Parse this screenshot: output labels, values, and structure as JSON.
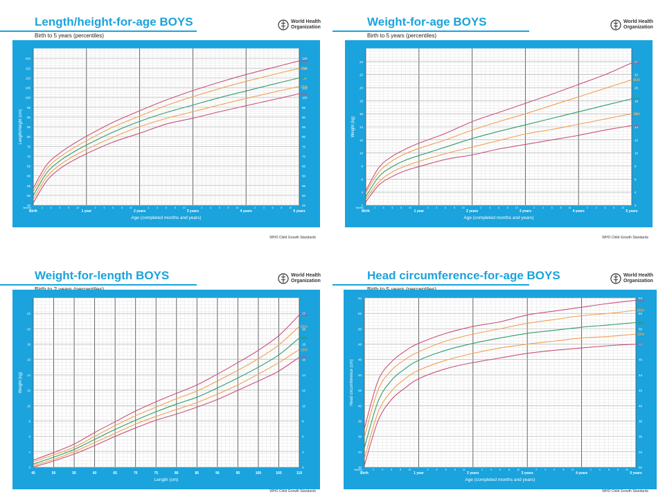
{
  "colors": {
    "header": "#1aa3dc",
    "p97": "#c8507a",
    "p85": "#f0a050",
    "p50": "#2e9b6a",
    "p15": "#f0a050",
    "p3": "#c8507a"
  },
  "brand": {
    "line1": "World Health",
    "line2": "Organization",
    "icon": "who-emblem-icon"
  },
  "footer": "WHO Child Growth Standards",
  "charts": [
    {
      "title": "Length/height-for-age BOYS",
      "subtitle": "Birth to 5 years (percentiles)",
      "chart_data": {
        "type": "line",
        "xlabel": "Age (completed months and years)",
        "ylabel": "Length/Height (cm)",
        "xlim": [
          0,
          60
        ],
        "ylim": [
          45,
          125
        ],
        "x_ticks": [
          0,
          12,
          24,
          36,
          48,
          60
        ],
        "x_tick_labels": [
          "Birth",
          "1 year",
          "2 years",
          "3 years",
          "4 years",
          "5 years"
        ],
        "x_minor_tick_labels": [
          "2",
          "4",
          "6",
          "8",
          "10",
          "2",
          "4",
          "6",
          "8",
          "10",
          "2",
          "4",
          "6",
          "8",
          "10",
          "2",
          "4",
          "6",
          "8",
          "10",
          "2",
          "4",
          "6",
          "8",
          "10"
        ],
        "x_start_label": "Months",
        "y_ticks": [
          45,
          50,
          55,
          60,
          65,
          70,
          75,
          80,
          85,
          90,
          95,
          100,
          105,
          110,
          115,
          120
        ],
        "grid": true,
        "x": [
          0,
          3,
          6,
          9,
          12,
          18,
          24,
          30,
          36,
          42,
          48,
          54,
          60
        ],
        "series": [
          {
            "name": "97th",
            "values": [
              53.7,
              65.5,
              71.6,
              76.2,
              80.2,
              87.3,
              93.2,
              98.7,
              103.5,
              107.8,
              111.7,
              115.2,
              118.7
            ]
          },
          {
            "name": "85th",
            "values": [
              51.9,
              63.5,
              69.6,
              74.1,
              77.9,
              84.9,
              90.5,
              95.9,
              100.4,
              104.5,
              108.2,
              111.6,
              114.9
            ]
          },
          {
            "name": "50th",
            "values": [
              49.9,
              61.4,
              67.6,
              72.0,
              75.7,
              82.3,
              87.8,
              92.3,
              96.1,
              99.9,
              103.3,
              106.7,
              110.0
            ]
          },
          {
            "name": "15th",
            "values": [
              47.9,
              59.3,
              65.6,
              69.9,
              73.5,
              79.7,
              85.1,
              89.3,
              92.7,
              96.2,
              99.5,
              102.6,
              105.6
            ]
          },
          {
            "name": "3rd",
            "values": [
              46.1,
              57.3,
              63.6,
              67.8,
              71.3,
              77.2,
              81.7,
              86.4,
              89.4,
              92.7,
              95.8,
              98.8,
              101.9
            ]
          }
        ]
      }
    },
    {
      "title": "Weight-for-age BOYS",
      "subtitle": "Birth to 5 years (percentiles)",
      "chart_data": {
        "type": "line",
        "xlabel": "Age (completed months and years)",
        "ylabel": "Weight (kg)",
        "xlim": [
          0,
          60
        ],
        "ylim": [
          2,
          26
        ],
        "x_ticks": [
          0,
          12,
          24,
          36,
          48,
          60
        ],
        "x_tick_labels": [
          "Birth",
          "1 year",
          "2 years",
          "3 years",
          "4 years",
          "5 years"
        ],
        "x_minor_tick_labels": [
          "2",
          "4",
          "6",
          "8",
          "10",
          "2",
          "4",
          "6",
          "8",
          "10",
          "2",
          "4",
          "6",
          "8",
          "10",
          "2",
          "4",
          "6",
          "8",
          "10",
          "2",
          "4",
          "6",
          "8",
          "10"
        ],
        "x_start_label": "Months",
        "y_ticks": [
          2,
          4,
          6,
          8,
          10,
          12,
          14,
          16,
          18,
          20,
          22,
          24
        ],
        "grid": true,
        "x": [
          0,
          3,
          6,
          9,
          12,
          18,
          24,
          30,
          36,
          42,
          48,
          54,
          60
        ],
        "series": [
          {
            "name": "97th",
            "values": [
              4.2,
              7.8,
              9.5,
              10.6,
              11.5,
              13.0,
              14.8,
              16.2,
              17.6,
              19.0,
              20.5,
              22.0,
              23.8
            ]
          },
          {
            "name": "85th",
            "values": [
              3.9,
              7.1,
              8.8,
              9.9,
              10.7,
              12.0,
              13.5,
              14.8,
              16.0,
              17.3,
              18.6,
              19.9,
              21.2
            ]
          },
          {
            "name": "50th",
            "values": [
              3.3,
              6.4,
              7.9,
              8.9,
              9.6,
              10.9,
              12.2,
              13.3,
              14.3,
              15.3,
              16.3,
              17.3,
              18.3
            ]
          },
          {
            "name": "15th",
            "values": [
              2.9,
              5.6,
              7.1,
              8.0,
              8.7,
              9.9,
              10.9,
              11.9,
              12.9,
              13.6,
              14.4,
              15.2,
              16.0
            ]
          },
          {
            "name": "3rd",
            "values": [
              2.5,
              5.1,
              6.4,
              7.3,
              7.9,
              9.0,
              9.7,
              10.6,
              11.3,
              12.0,
              12.7,
              13.5,
              14.2
            ]
          }
        ]
      }
    },
    {
      "title": "Weight-for-length BOYS",
      "subtitle": "Birth to 2 years (percentiles)",
      "chart_data": {
        "type": "line",
        "xlabel": "Length (cm)",
        "ylabel": "Weight (kg)",
        "xlim": [
          45,
          110
        ],
        "ylim": [
          2,
          24
        ],
        "x_ticks": [
          45,
          50,
          55,
          60,
          65,
          70,
          75,
          80,
          85,
          90,
          95,
          100,
          105,
          110
        ],
        "x_tick_labels": [
          "45",
          "50",
          "55",
          "60",
          "65",
          "70",
          "75",
          "80",
          "85",
          "90",
          "95",
          "100",
          "105",
          "110"
        ],
        "y_ticks": [
          2,
          4,
          6,
          8,
          10,
          12,
          14,
          16,
          18,
          20,
          22
        ],
        "grid": true,
        "x": [
          45,
          50,
          55,
          60,
          65,
          70,
          75,
          80,
          85,
          90,
          95,
          100,
          105,
          110
        ],
        "series": [
          {
            "name": "97th",
            "values": [
              2.9,
              3.9,
              5.0,
              6.5,
              7.9,
              9.3,
              10.5,
              11.6,
              12.7,
              14.1,
              15.6,
              17.2,
              19.1,
              21.8
            ]
          },
          {
            "name": "85th",
            "values": [
              2.7,
              3.6,
              4.6,
              6.0,
              7.4,
              8.7,
              9.8,
              10.9,
              11.9,
              13.2,
              14.6,
              16.1,
              17.9,
              20.3
            ]
          },
          {
            "name": "50th",
            "values": [
              2.4,
              3.3,
              4.3,
              5.6,
              6.9,
              8.1,
              9.2,
              10.2,
              11.1,
              12.3,
              13.6,
              15.0,
              16.6,
              18.8
            ]
          },
          {
            "name": "15th",
            "values": [
              2.2,
              3.0,
              4.0,
              5.2,
              6.4,
              7.6,
              8.6,
              9.5,
              10.4,
              11.5,
              12.7,
              14.1,
              15.6,
              17.3
            ]
          },
          {
            "name": "3rd",
            "values": [
              2.0,
              2.8,
              3.7,
              4.8,
              6.0,
              7.1,
              8.1,
              8.9,
              9.8,
              10.8,
              12.0,
              13.2,
              14.5,
              16.3
            ]
          }
        ]
      }
    },
    {
      "title": "Head circumference-for-age  BOYS",
      "subtitle": "Birth to 5 years (percentiles)",
      "chart_data": {
        "type": "line",
        "xlabel": "Age (completed months and years)",
        "ylabel": "Head circumference (cm)",
        "xlim": [
          0,
          60
        ],
        "ylim": [
          32,
          54
        ],
        "x_ticks": [
          0,
          12,
          24,
          36,
          48,
          60
        ],
        "x_tick_labels": [
          "Birth",
          "1 year",
          "2 years",
          "3 years",
          "4 years",
          "5 years"
        ],
        "x_minor_tick_labels": [
          "2",
          "4",
          "6",
          "8",
          "10",
          "2",
          "4",
          "6",
          "8",
          "10",
          "2",
          "4",
          "6",
          "8",
          "10",
          "2",
          "4",
          "6",
          "8",
          "10",
          "2",
          "4",
          "6",
          "8",
          "10"
        ],
        "x_start_label": "Months",
        "y_ticks": [
          32,
          34,
          36,
          38,
          40,
          42,
          44,
          46,
          48,
          50,
          52,
          54
        ],
        "grid": true,
        "x": [
          0,
          3,
          6,
          9,
          12,
          18,
          24,
          30,
          36,
          42,
          48,
          54,
          60
        ],
        "series": [
          {
            "name": "97th",
            "values": [
              37.0,
              43.2,
              45.7,
              47.1,
              48.1,
              49.4,
              50.3,
              50.9,
              51.8,
              52.3,
              52.8,
              53.3,
              53.7
            ]
          },
          {
            "name": "85th",
            "values": [
              35.9,
              42.0,
              44.6,
              46.0,
              47.0,
              48.4,
              49.3,
              50.0,
              50.7,
              51.2,
              51.7,
              52.0,
              52.4
            ]
          },
          {
            "name": "50th",
            "values": [
              34.5,
              40.5,
              43.3,
              44.8,
              45.9,
              47.2,
              48.1,
              48.8,
              49.4,
              49.8,
              50.2,
              50.5,
              50.8
            ]
          },
          {
            "name": "15th",
            "values": [
              33.1,
              39.1,
              41.9,
              43.5,
              44.6,
              45.9,
              46.8,
              47.5,
              48.0,
              48.4,
              48.8,
              49.0,
              49.3
            ]
          },
          {
            "name": "3rd",
            "values": [
              32.2,
              38.0,
              40.8,
              42.3,
              43.5,
              44.8,
              45.6,
              46.2,
              46.8,
              47.2,
              47.5,
              47.8,
              48.0
            ]
          }
        ]
      }
    }
  ]
}
